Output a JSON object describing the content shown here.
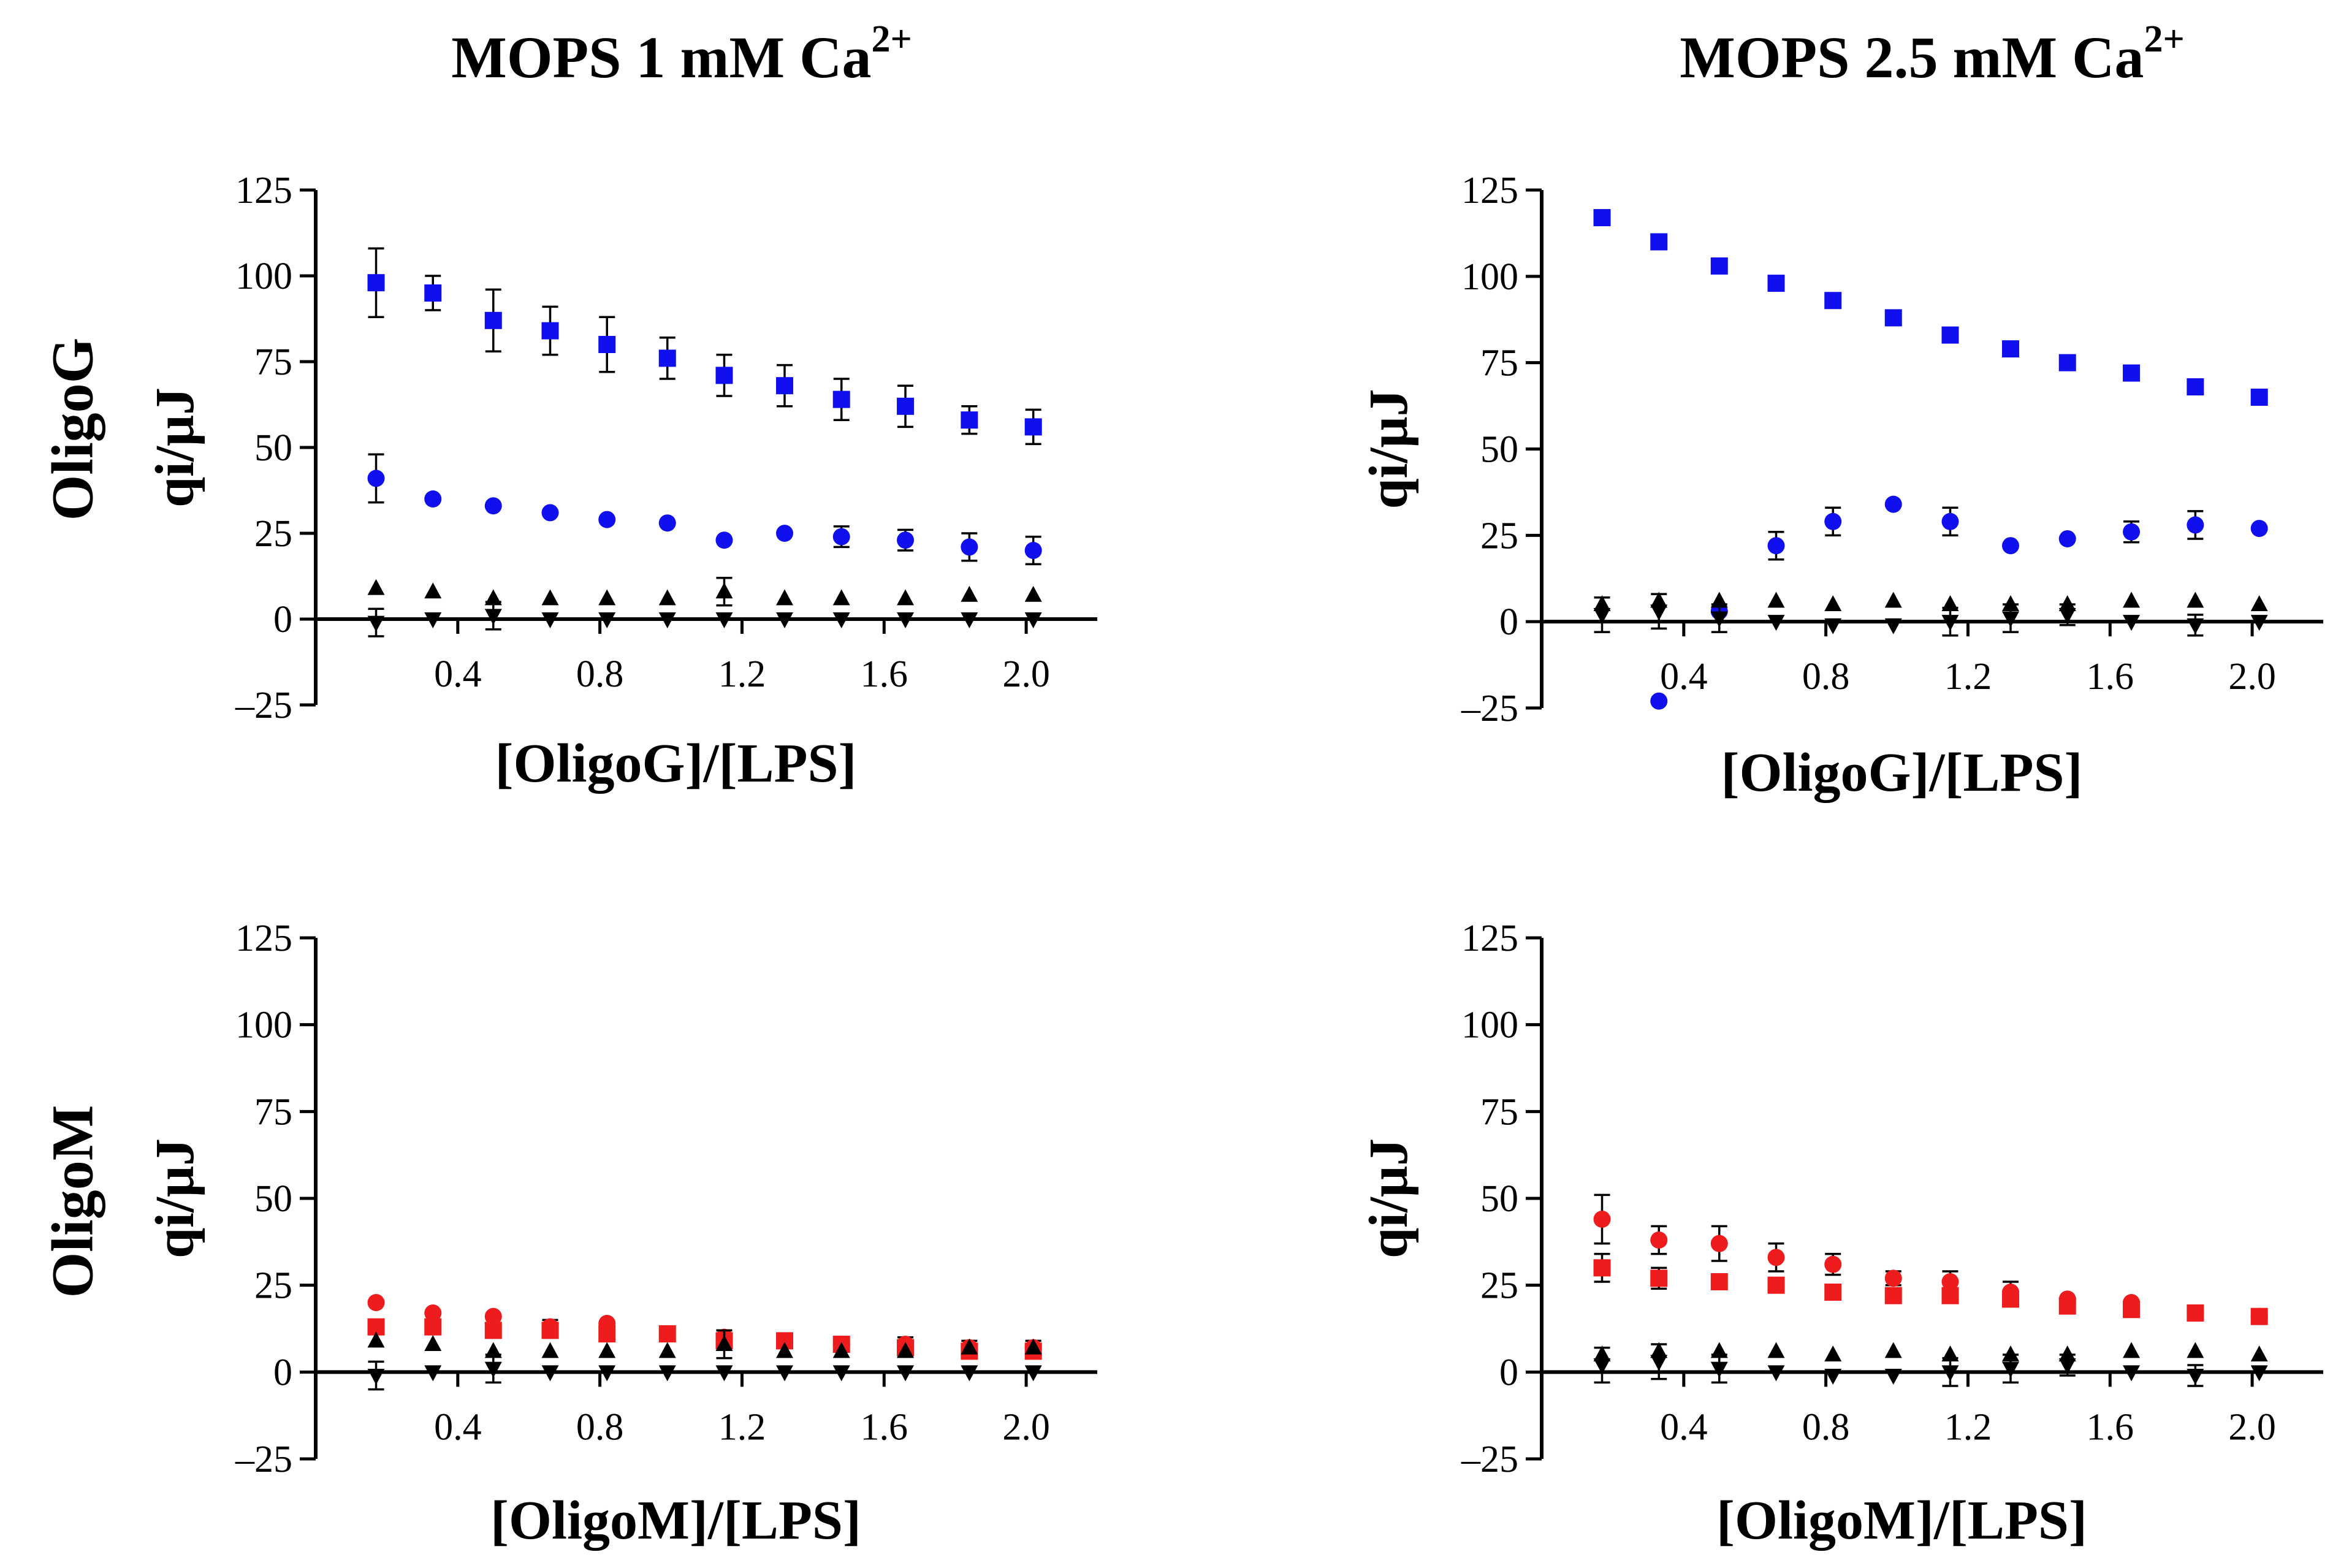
{
  "figure": {
    "column_titles": [
      {
        "text": "MOPS 1 mM Ca",
        "sup": "2+"
      },
      {
        "text": "MOPS 2.5 mM Ca",
        "sup": "2+"
      }
    ],
    "row_titles": [
      "OligoG",
      "OligoM"
    ]
  },
  "colors": {
    "blue": "#1010ee",
    "red": "#ee1c1c",
    "black": "#000000"
  },
  "chart_data": [
    {
      "type": "scatter",
      "id": "oligoG-1mM",
      "xlabel": "[OligoG]/[LPS]",
      "ylabel": "qi/μJ",
      "xlim": [
        0,
        2.2
      ],
      "ylim": [
        -25,
        125
      ],
      "yticks": [
        -25,
        0,
        25,
        50,
        75,
        100,
        125
      ],
      "ytick_labels": [
        "–25",
        "0",
        "25",
        "50",
        "75",
        "100",
        "125"
      ],
      "xticks": [
        0.4,
        0.8,
        1.2,
        1.6,
        2.0
      ],
      "xtick_labels": [
        "0.4",
        "0.8",
        "1.2",
        "1.6",
        "2.0"
      ],
      "x": [
        0.17,
        0.33,
        0.5,
        0.66,
        0.82,
        0.99,
        1.15,
        1.32,
        1.48,
        1.66,
        1.84,
        2.02
      ],
      "series": [
        {
          "name": "square",
          "marker": "square",
          "color": "#1010ee",
          "values": [
            98,
            95,
            87,
            84,
            80,
            76,
            71,
            68,
            64,
            62,
            58,
            56
          ],
          "errors": [
            10,
            5,
            9,
            7,
            8,
            6,
            6,
            6,
            6,
            6,
            4,
            5
          ]
        },
        {
          "name": "circle",
          "marker": "circle",
          "color": "#1010ee",
          "values": [
            41,
            35,
            33,
            31,
            29,
            28,
            23,
            25,
            24,
            23,
            21,
            20
          ],
          "errors": [
            7,
            0,
            0,
            0,
            0,
            0,
            0,
            0,
            3,
            3,
            4,
            4
          ]
        },
        {
          "name": "triangle-up",
          "marker": "triangle-up",
          "color": "#000000",
          "values": [
            9,
            8,
            6,
            6,
            6,
            6,
            8,
            6,
            6,
            6,
            7,
            7
          ],
          "errors": [
            0,
            0,
            0,
            0,
            0,
            0,
            4,
            0,
            0,
            0,
            0,
            0
          ]
        },
        {
          "name": "triangle-down",
          "marker": "triangle-down",
          "color": "#000000",
          "values": [
            -1,
            0,
            1,
            0,
            0,
            0,
            0,
            0,
            0,
            0,
            0,
            0
          ],
          "errors": [
            4,
            0,
            4,
            0,
            0,
            0,
            0,
            0,
            0,
            0,
            0,
            0
          ]
        }
      ]
    },
    {
      "type": "scatter",
      "id": "oligoG-2.5mM",
      "xlabel": "[OligoG]/[LPS]",
      "ylabel": "qi/μJ",
      "xlim": [
        0,
        2.2
      ],
      "ylim": [
        -25,
        125
      ],
      "yticks": [
        -25,
        0,
        25,
        50,
        75,
        100,
        125
      ],
      "ytick_labels": [
        "–25",
        "0",
        "25",
        "50",
        "75",
        "100",
        "125"
      ],
      "xticks": [
        0.4,
        0.8,
        1.2,
        1.6,
        2.0
      ],
      "xtick_labels": [
        "0.4",
        "0.8",
        "1.2",
        "1.6",
        "2.0"
      ],
      "x": [
        0.17,
        0.33,
        0.5,
        0.66,
        0.82,
        0.99,
        1.15,
        1.32,
        1.48,
        1.66,
        1.84,
        2.02
      ],
      "series": [
        {
          "name": "square",
          "marker": "square",
          "color": "#1010ee",
          "values": [
            117,
            110,
            103,
            98,
            93,
            88,
            83,
            79,
            75,
            72,
            68,
            65
          ],
          "errors": [
            0,
            2,
            0,
            2,
            0,
            0,
            0,
            0,
            0,
            0,
            0,
            0
          ]
        },
        {
          "name": "circle",
          "marker": "circle",
          "color": "#1010ee",
          "values": [
            null,
            -23,
            3,
            22,
            29,
            34,
            29,
            22,
            24,
            26,
            28,
            27
          ],
          "errors": [
            0,
            0,
            0,
            4,
            4,
            0,
            4,
            0,
            0,
            3,
            4,
            0
          ]
        },
        {
          "name": "triangle-up",
          "marker": "triangle-up",
          "color": "#000000",
          "values": [
            5,
            6,
            6,
            6,
            5,
            6,
            5,
            5,
            5,
            6,
            6,
            5
          ],
          "errors": [
            0,
            0,
            0,
            0,
            0,
            0,
            0,
            0,
            0,
            0,
            0,
            0
          ]
        },
        {
          "name": "triangle-down",
          "marker": "triangle-down",
          "color": "#000000",
          "values": [
            2,
            3,
            1,
            0,
            -1,
            -1,
            0,
            1,
            2,
            0,
            -1,
            0
          ],
          "errors": [
            5,
            5,
            4,
            0,
            0,
            0,
            4,
            4,
            3,
            0,
            3,
            0
          ]
        }
      ]
    },
    {
      "type": "scatter",
      "id": "oligoM-1mM",
      "xlabel": "[OligoM]/[LPS]",
      "ylabel": "qi/μJ",
      "xlim": [
        0,
        2.2
      ],
      "ylim": [
        -25,
        125
      ],
      "yticks": [
        -25,
        0,
        25,
        50,
        75,
        100,
        125
      ],
      "ytick_labels": [
        "–25",
        "0",
        "25",
        "50",
        "75",
        "100",
        "125"
      ],
      "xticks": [
        0.4,
        0.8,
        1.2,
        1.6,
        2.0
      ],
      "xtick_labels": [
        "0.4",
        "0.8",
        "1.2",
        "1.6",
        "2.0"
      ],
      "x": [
        0.17,
        0.33,
        0.5,
        0.66,
        0.82,
        0.99,
        1.15,
        1.32,
        1.48,
        1.66,
        1.84,
        2.02
      ],
      "series": [
        {
          "name": "circle",
          "marker": "circle",
          "color": "#ee1c1c",
          "values": [
            20,
            17,
            16,
            13,
            14,
            11,
            10,
            9,
            8,
            8,
            7,
            7
          ],
          "errors": [
            0,
            0,
            0,
            2,
            0,
            2,
            2,
            2,
            2,
            2,
            2,
            2
          ]
        },
        {
          "name": "square",
          "marker": "square",
          "color": "#ee1c1c",
          "values": [
            13,
            13,
            12,
            12,
            11,
            11,
            9,
            9,
            8,
            7,
            6,
            6
          ],
          "errors": [
            0,
            0,
            0,
            0,
            0,
            0,
            0,
            0,
            0,
            0,
            0,
            0
          ]
        },
        {
          "name": "triangle-up",
          "marker": "triangle-up",
          "color": "#000000",
          "values": [
            9,
            8,
            6,
            6,
            6,
            6,
            8,
            6,
            6,
            6,
            7,
            7
          ],
          "errors": [
            0,
            0,
            0,
            0,
            0,
            0,
            4,
            0,
            0,
            0,
            0,
            0
          ]
        },
        {
          "name": "triangle-down",
          "marker": "triangle-down",
          "color": "#000000",
          "values": [
            -1,
            0,
            1,
            0,
            0,
            0,
            0,
            0,
            0,
            0,
            0,
            0
          ],
          "errors": [
            4,
            0,
            4,
            0,
            0,
            0,
            0,
            0,
            0,
            0,
            0,
            0
          ]
        }
      ]
    },
    {
      "type": "scatter",
      "id": "oligoM-2.5mM",
      "xlabel": "[OligoM]/[LPS]",
      "ylabel": "qi/μJ",
      "xlim": [
        0,
        2.2
      ],
      "ylim": [
        -25,
        125
      ],
      "yticks": [
        -25,
        0,
        25,
        50,
        75,
        100,
        125
      ],
      "ytick_labels": [
        "–25",
        "0",
        "25",
        "50",
        "75",
        "100",
        "125"
      ],
      "xticks": [
        0.4,
        0.8,
        1.2,
        1.6,
        2.0
      ],
      "xtick_labels": [
        "0.4",
        "0.8",
        "1.2",
        "1.6",
        "2.0"
      ],
      "x": [
        0.17,
        0.33,
        0.5,
        0.66,
        0.82,
        0.99,
        1.15,
        1.32,
        1.48,
        1.66,
        1.84,
        2.02
      ],
      "series": [
        {
          "name": "circle",
          "marker": "circle",
          "color": "#ee1c1c",
          "values": [
            44,
            38,
            37,
            33,
            31,
            27,
            26,
            23,
            21,
            20,
            17,
            16
          ],
          "errors": [
            7,
            4,
            5,
            4,
            3,
            2,
            3,
            3,
            0,
            0,
            0,
            0
          ]
        },
        {
          "name": "square",
          "marker": "square",
          "color": "#ee1c1c",
          "values": [
            30,
            27,
            26,
            25,
            23,
            22,
            22,
            21,
            19,
            18,
            17,
            16
          ],
          "errors": [
            4,
            3,
            0,
            0,
            0,
            0,
            0,
            0,
            0,
            0,
            0,
            0
          ]
        },
        {
          "name": "triangle-up",
          "marker": "triangle-up",
          "color": "#000000",
          "values": [
            5,
            6,
            6,
            6,
            5,
            6,
            5,
            5,
            5,
            6,
            6,
            5
          ],
          "errors": [
            0,
            0,
            0,
            0,
            0,
            0,
            0,
            0,
            0,
            0,
            0,
            0
          ]
        },
        {
          "name": "triangle-down",
          "marker": "triangle-down",
          "color": "#000000",
          "values": [
            2,
            3,
            1,
            0,
            -1,
            -1,
            0,
            1,
            2,
            0,
            -1,
            0
          ],
          "errors": [
            5,
            5,
            4,
            0,
            0,
            0,
            4,
            4,
            3,
            0,
            3,
            0
          ]
        }
      ]
    }
  ]
}
